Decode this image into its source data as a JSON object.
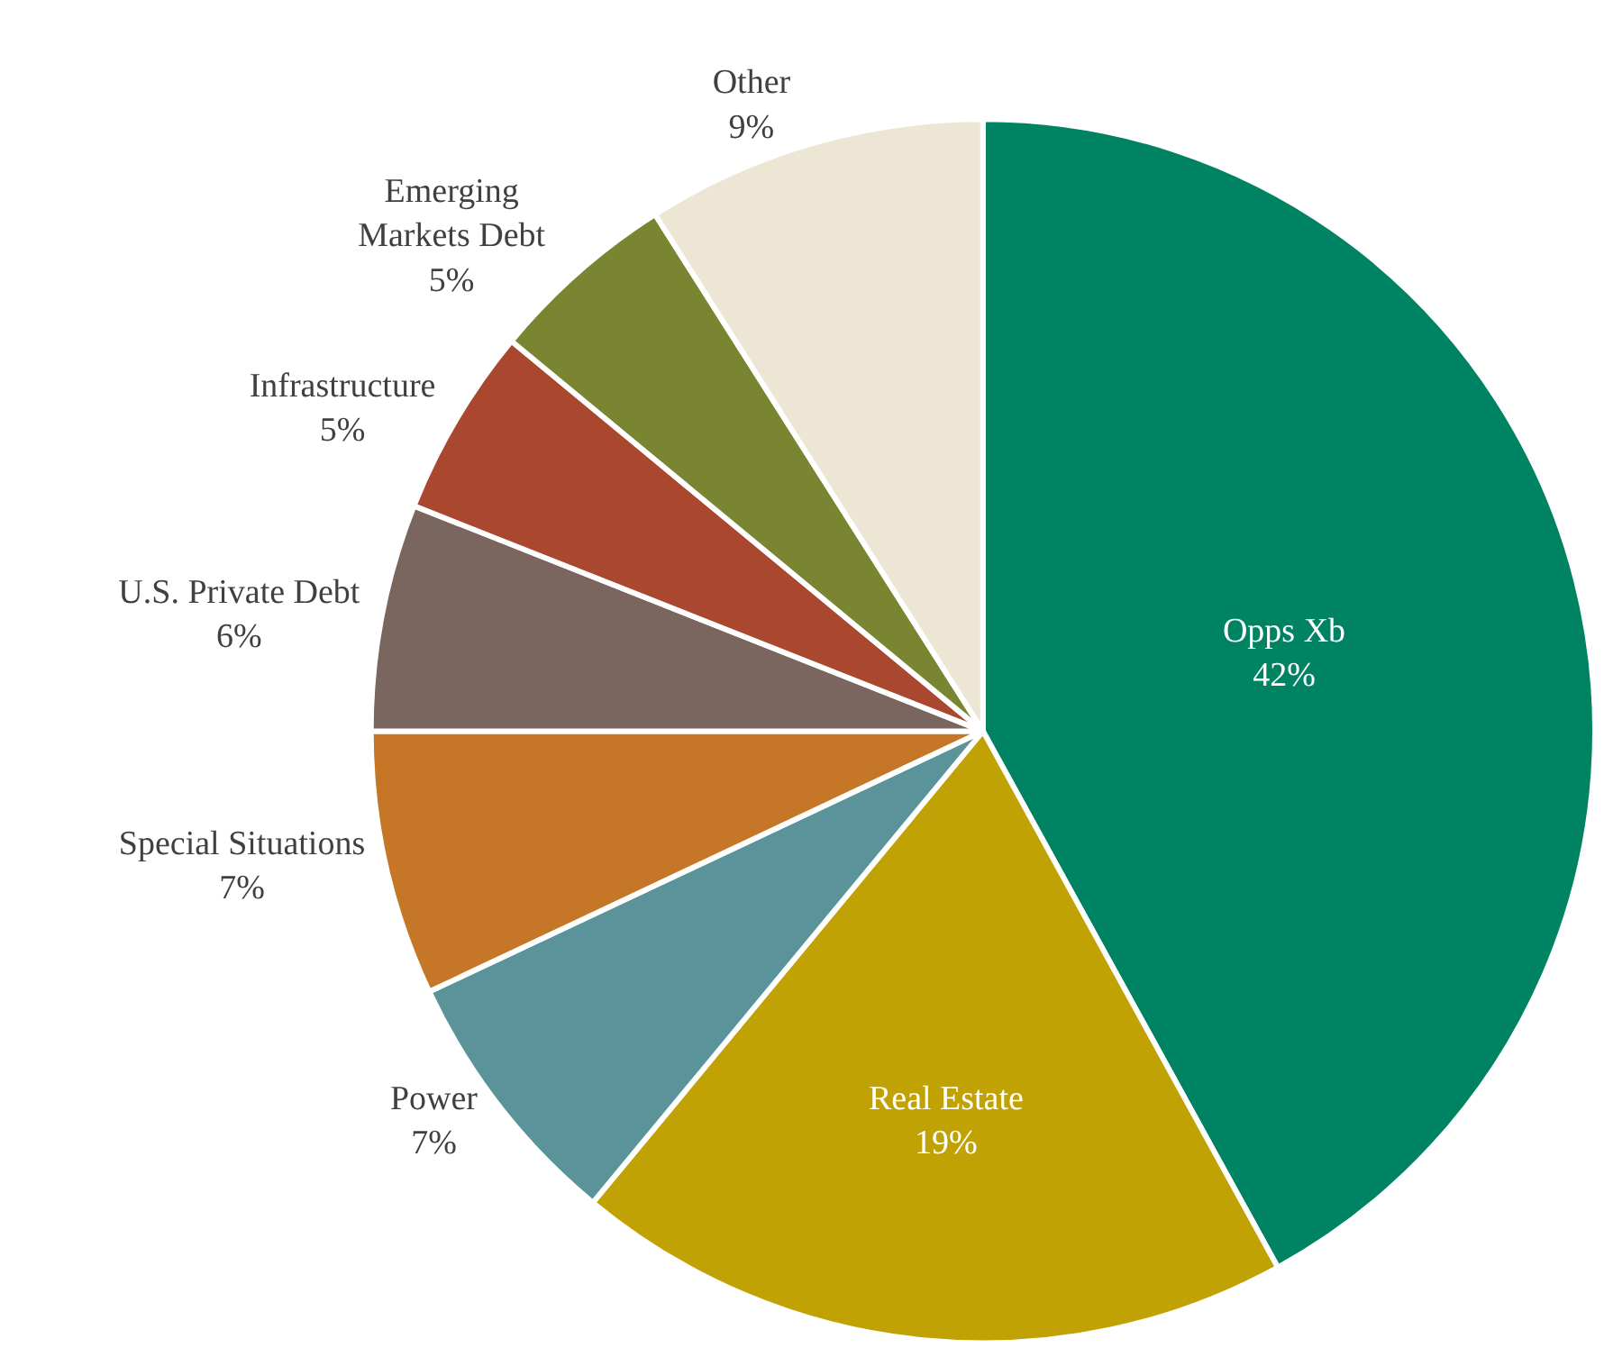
{
  "chart_data": {
    "type": "pie",
    "categories": [
      "Opps Xb",
      "Real Estate",
      "Power",
      "Special Situations",
      "U.S. Private Debt",
      "Infrastructure",
      "Emerging Markets Debt",
      "Other"
    ],
    "values": [
      42,
      19,
      7,
      7,
      6,
      5,
      5,
      9
    ],
    "value_labels": [
      "42%",
      "19%",
      "7%",
      "7%",
      "6%",
      "5%",
      "5%",
      "9%"
    ],
    "colors": [
      "#008363",
      "#c1a204",
      "#5a9399",
      "#c57727",
      "#7a665f",
      "#a9482f",
      "#798531",
      "#ede6d4"
    ],
    "legend": false
  }
}
